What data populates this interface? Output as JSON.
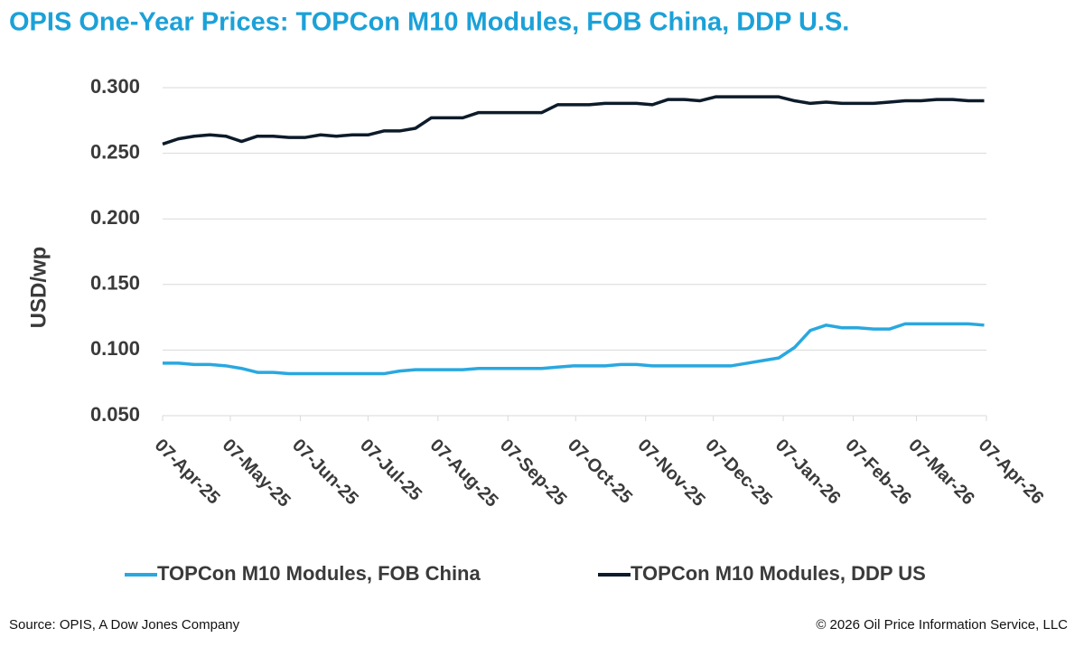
{
  "chart_data": {
    "type": "line",
    "title": "OPIS One-Year Prices: TOPCon M10 Modules, FOB China, DDP U.S.",
    "y_label": "USD/wp",
    "source": "Source: OPIS, A Dow Jones Company",
    "copyright": "© 2026 Oil Price Information Service, LLC",
    "x": [
      "2025-04-07",
      "2025-04-14",
      "2025-04-21",
      "2025-04-28",
      "2025-05-05",
      "2025-05-12",
      "2025-05-19",
      "2025-05-26",
      "2025-06-02",
      "2025-06-09",
      "2025-06-16",
      "2025-06-23",
      "2025-06-30",
      "2025-07-07",
      "2025-07-14",
      "2025-07-21",
      "2025-07-28",
      "2025-08-04",
      "2025-08-11",
      "2025-08-18",
      "2025-08-25",
      "2025-09-01",
      "2025-09-08",
      "2025-09-15",
      "2025-09-22",
      "2025-09-29",
      "2025-10-06",
      "2025-10-13",
      "2025-10-20",
      "2025-10-27",
      "2025-11-03",
      "2025-11-10",
      "2025-11-17",
      "2025-11-24",
      "2025-12-01",
      "2025-12-08",
      "2025-12-15",
      "2025-12-22",
      "2025-12-29",
      "2026-01-05",
      "2026-01-12",
      "2026-01-19",
      "2026-01-26",
      "2026-02-02",
      "2026-02-09",
      "2026-02-16",
      "2026-02-23",
      "2026-03-02",
      "2026-03-09",
      "2026-03-16",
      "2026-03-23",
      "2026-03-30",
      "2026-04-06"
    ],
    "series": [
      {
        "name": "TOPCon M10 Modules, FOB China",
        "color": "#29a8e0",
        "values": [
          0.09,
          0.09,
          0.089,
          0.089,
          0.088,
          0.086,
          0.083,
          0.083,
          0.082,
          0.082,
          0.082,
          0.082,
          0.082,
          0.082,
          0.082,
          0.084,
          0.085,
          0.085,
          0.085,
          0.085,
          0.086,
          0.086,
          0.086,
          0.086,
          0.086,
          0.087,
          0.088,
          0.088,
          0.088,
          0.089,
          0.089,
          0.088,
          0.088,
          0.088,
          0.088,
          0.088,
          0.088,
          0.09,
          0.092,
          0.094,
          0.102,
          0.115,
          0.119,
          0.117,
          0.117,
          0.116,
          0.116,
          0.12,
          0.12,
          0.12,
          0.12,
          0.12,
          0.119
        ]
      },
      {
        "name": "TOPCon M10 Modules, DDP US",
        "color": "#0d1b2a",
        "values": [
          0.257,
          0.261,
          0.263,
          0.264,
          0.263,
          0.259,
          0.263,
          0.263,
          0.262,
          0.262,
          0.264,
          0.263,
          0.264,
          0.264,
          0.267,
          0.267,
          0.269,
          0.277,
          0.277,
          0.277,
          0.281,
          0.281,
          0.281,
          0.281,
          0.281,
          0.287,
          0.287,
          0.287,
          0.288,
          0.288,
          0.288,
          0.287,
          0.291,
          0.291,
          0.29,
          0.293,
          0.293,
          0.293,
          0.293,
          0.293,
          0.29,
          0.288,
          0.289,
          0.288,
          0.288,
          0.288,
          0.289,
          0.29,
          0.29,
          0.291,
          0.291,
          0.29,
          0.29
        ]
      }
    ],
    "xlim": [
      "2025-04-07",
      "2026-04-07"
    ],
    "xticks": [
      {
        "value": "2025-04-07",
        "label": "07-Apr-25"
      },
      {
        "value": "2025-05-07",
        "label": "07-May-25"
      },
      {
        "value": "2025-06-07",
        "label": "07-Jun-25"
      },
      {
        "value": "2025-07-07",
        "label": "07-Jul-25"
      },
      {
        "value": "2025-08-07",
        "label": "07-Aug-25"
      },
      {
        "value": "2025-09-07",
        "label": "07-Sep-25"
      },
      {
        "value": "2025-10-07",
        "label": "07-Oct-25"
      },
      {
        "value": "2025-11-07",
        "label": "07-Nov-25"
      },
      {
        "value": "2025-12-07",
        "label": "07-Dec-25"
      },
      {
        "value": "2026-01-07",
        "label": "07-Jan-26"
      },
      {
        "value": "2026-02-07",
        "label": "07-Feb-26"
      },
      {
        "value": "2026-03-07",
        "label": "07-Mar-26"
      },
      {
        "value": "2026-04-07",
        "label": "07-Apr-26"
      }
    ],
    "ylim": [
      0.05,
      0.3
    ],
    "yticks": [
      {
        "value": 0.05,
        "label": "0.050"
      },
      {
        "value": 0.1,
        "label": "0.100"
      },
      {
        "value": 0.15,
        "label": "0.150"
      },
      {
        "value": 0.2,
        "label": "0.200"
      },
      {
        "value": 0.25,
        "label": "0.250"
      },
      {
        "value": 0.3,
        "label": "0.300"
      }
    ],
    "grid": true,
    "legend": "bottom"
  }
}
